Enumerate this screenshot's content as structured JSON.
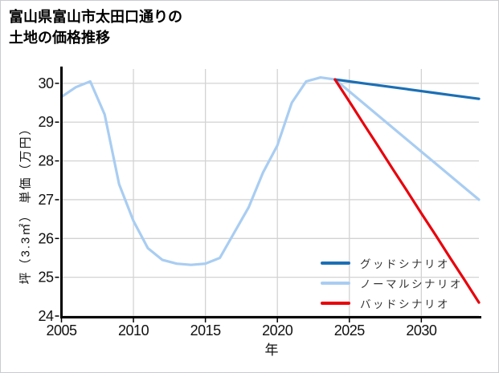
{
  "title": {
    "line1": "富山県富山市太田口通りの",
    "line2": "土地の価格推移"
  },
  "axes": {
    "x_label": "年",
    "y_label": "坪（3.3㎡） 単価（万円）"
  },
  "legend": {
    "items": [
      {
        "label": "グッドシナリオ",
        "color": "#1b6fb5"
      },
      {
        "label": "ノーマルシナリオ",
        "color": "#a9cdf2"
      },
      {
        "label": "バッドシナリオ",
        "color": "#e8000b"
      }
    ]
  },
  "colors": {
    "good_scenario": "#1b6fb5",
    "normal_scenario": "#a9cdf2",
    "bad_scenario": "#e8000b",
    "gridline": "#d3d3d3",
    "axis_spine": "#000000",
    "tick_text": "#111111"
  },
  "chart_data": {
    "type": "line",
    "title": "富山県富山市太田口通りの土地の価格推移",
    "xlabel": "年",
    "ylabel": "坪（3.3㎡） 単価（万円）",
    "x_ticks": [
      2005,
      2010,
      2015,
      2020,
      2025,
      2030
    ],
    "y_ticks": [
      24,
      25,
      26,
      27,
      28,
      29,
      30
    ],
    "xlim": [
      2005,
      2034
    ],
    "ylim": [
      24,
      30.37
    ],
    "grid": true,
    "legend_position": "lower right",
    "series": [
      {
        "name": "ノーマルシナリオ",
        "color": "#a9cdf2",
        "x": [
          2005,
          2006,
          2007,
          2008,
          2009,
          2010,
          2011,
          2012,
          2013,
          2014,
          2015,
          2016,
          2017,
          2018,
          2019,
          2020,
          2021,
          2022,
          2023,
          2024,
          2025,
          2026,
          2027,
          2028,
          2029,
          2030,
          2031,
          2032,
          2033,
          2034
        ],
        "values": [
          29.65,
          29.9,
          30.05,
          29.2,
          27.4,
          26.45,
          25.75,
          25.45,
          25.35,
          25.32,
          25.35,
          25.5,
          26.15,
          26.8,
          27.7,
          28.4,
          29.5,
          30.05,
          30.15,
          30.1,
          29.79,
          29.48,
          29.17,
          28.86,
          28.55,
          28.24,
          27.93,
          27.62,
          27.31,
          27.0
        ]
      },
      {
        "name": "グッドシナリオ",
        "color": "#1b6fb5",
        "x": [
          2024,
          2025,
          2026,
          2027,
          2028,
          2029,
          2030,
          2031,
          2032,
          2033,
          2034
        ],
        "values": [
          30.1,
          30.05,
          30.0,
          29.95,
          29.9,
          29.85,
          29.8,
          29.75,
          29.7,
          29.65,
          29.6
        ]
      },
      {
        "name": "バッドシナリオ",
        "color": "#e8000b",
        "x": [
          2024,
          2025,
          2026,
          2027,
          2028,
          2029,
          2030,
          2031,
          2032,
          2033,
          2034
        ],
        "values": [
          30.1,
          29.53,
          28.95,
          28.38,
          27.8,
          27.23,
          26.65,
          26.08,
          25.5,
          24.93,
          24.35
        ]
      }
    ]
  }
}
